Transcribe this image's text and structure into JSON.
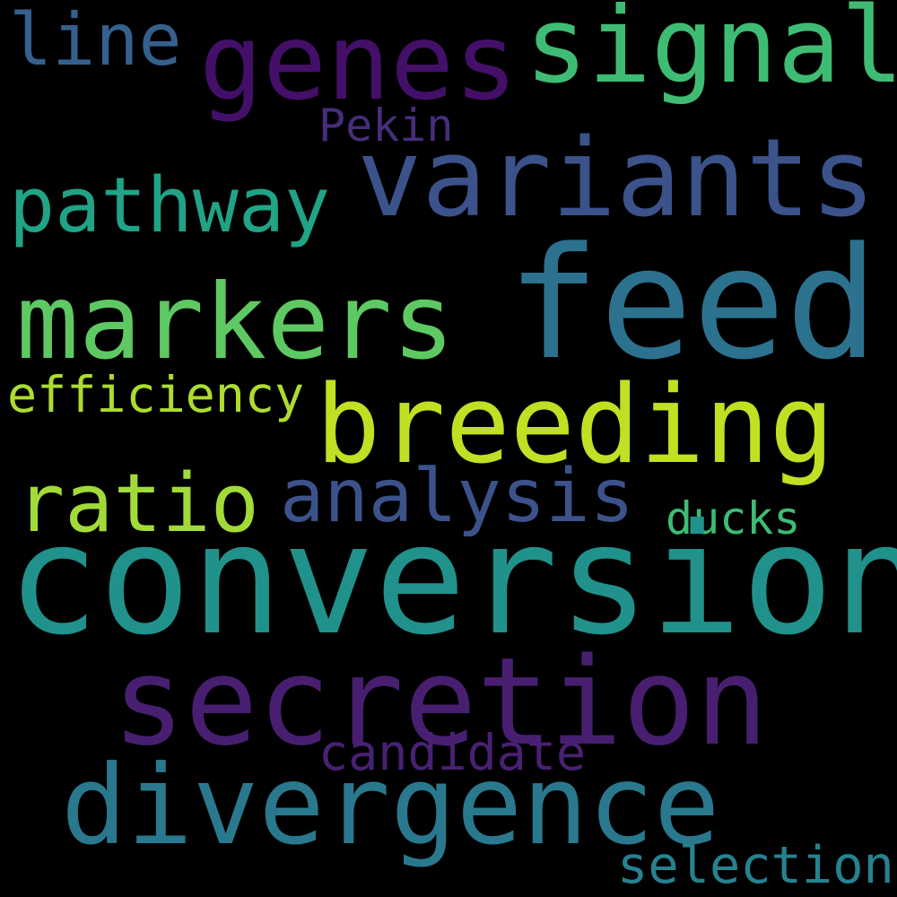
{
  "background_color": "#000000",
  "words": {
    "line": {
      "text": "line",
      "color": "#35608d"
    },
    "genes": {
      "text": "genes",
      "color": "#440f68"
    },
    "signal": {
      "text": "signal",
      "color": "#3fbc73"
    },
    "pekin": {
      "text": "Pekin",
      "color": "#472d7b"
    },
    "variants": {
      "text": "variants",
      "color": "#3b528b"
    },
    "pathway": {
      "text": "pathway",
      "color": "#20a386"
    },
    "markers": {
      "text": "markers",
      "color": "#5ec962"
    },
    "feed": {
      "text": "feed",
      "color": "#2c728e"
    },
    "efficiency": {
      "text": "efficiency",
      "color": "#addc30"
    },
    "breeding": {
      "text": "breeding",
      "color": "#c2df23"
    },
    "ratio": {
      "text": "ratio",
      "color": "#a2da37"
    },
    "analysis": {
      "text": "analysis",
      "color": "#3b528b"
    },
    "ducks": {
      "text": "ducks",
      "color": "#3dbc74"
    },
    "conversion": {
      "text": "conversion",
      "color": "#21918c"
    },
    "secretion": {
      "text": "secretion",
      "color": "#481f70"
    },
    "candidate": {
      "text": "candidate",
      "color": "#482173"
    },
    "divergence": {
      "text": "divergence",
      "color": "#2a788e"
    },
    "selection": {
      "text": "selection",
      "color": "#26828e"
    }
  }
}
